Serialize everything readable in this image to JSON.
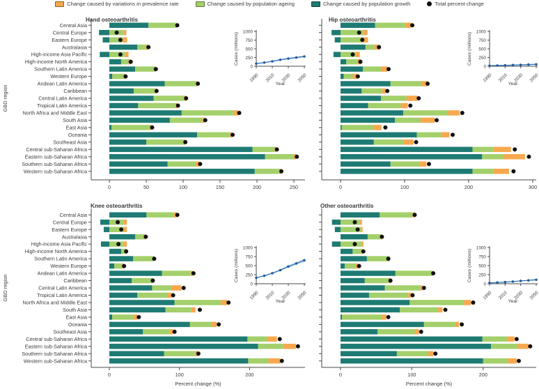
{
  "legend": {
    "items": [
      {
        "label": "Change caused by variations in prevalence rate",
        "color": "#f7a84e",
        "shape": "square"
      },
      {
        "label": "Change caused by population ageing",
        "color": "#a4d06b",
        "shape": "square"
      },
      {
        "label": "Change caused by population growth",
        "color": "#1e7b73",
        "shape": "square"
      },
      {
        "label": "Total percent change",
        "color": "#111111",
        "shape": "dot"
      }
    ]
  },
  "axes": {
    "y_axis_label": "GBD region",
    "x_axis_label": "Percent change (%)"
  },
  "colors": {
    "prevalence": "#f7a84e",
    "ageing": "#a4d06b",
    "growth": "#1e7b73",
    "total_dot": "#111111",
    "inset_line": "#2c6cb0",
    "inset_marker": "#1f5d9e",
    "inset_band": "#b8d3ea",
    "axis": "#4a4a4a",
    "text": "#3a3a3a"
  },
  "chart_data": {
    "type": "bar",
    "orientation": "horizontal-stacked",
    "categories": [
      "Central Asia",
      "Central Europe",
      "Eastern Europe",
      "Australasia",
      "High-income Asia Pacific",
      "High-income North America",
      "Southern Latin America",
      "Western Europe",
      "Andean Latin America",
      "Caribbean",
      "Central Latin America",
      "Tropical Latin America",
      "North Africa and Middle East",
      "South Asia",
      "East Asia",
      "Oceania",
      "Southeast Asia",
      "Central sub-Saharan Africa",
      "Eastern sub-Saharan Africa",
      "Southern sub-Saharan Africa",
      "Western sub-Saharan Africa"
    ],
    "panels": [
      {
        "id": "hand",
        "title": "Hand osteoarthritis",
        "x_ticks": [
          0,
          50,
          100,
          150,
          200,
          250
        ],
        "xlim": [
          -30,
          265
        ],
        "series": [
          {
            "name": "Change caused by population growth",
            "key": "growth",
            "values": [
              53,
              -14,
              -9,
              38,
              -13,
              16,
              35,
              4,
              75,
              33,
              60,
              39,
              98,
              82,
              3,
              119,
              50,
              194,
              211,
              79,
              197
            ]
          },
          {
            "name": "Change caused by population ageing",
            "key": "ageing",
            "values": [
              36,
              19,
              18,
              12,
              21,
              10,
              26,
              15,
              43,
              29,
              41,
              50,
              71,
              44,
              51,
              44,
              50,
              30,
              38,
              38,
              33
            ]
          },
          {
            "name": "Change caused by variations in prevalence rate",
            "key": "prevalence",
            "values": [
              2,
              4,
              6,
              3,
              5,
              3,
              2,
              3,
              2,
              2,
              3,
              3,
              6,
              3,
              3,
              3,
              3,
              2,
              4,
              5,
              3
            ]
          }
        ],
        "total_percent_change": [
          92,
          10,
          15,
          53,
          15,
          29,
          63,
          22,
          120,
          64,
          104,
          93,
          176,
          130,
          58,
          167,
          103,
          227,
          254,
          123,
          233
        ],
        "inset": {
          "ylabel": "Cases (millions)",
          "xlabel": "Year",
          "ylim": [
            0,
            1000
          ],
          "y_ticks": [
            0,
            250,
            500,
            750,
            1000
          ],
          "x_tick_labels": [
            "1990",
            "2010",
            "2030",
            "2050"
          ],
          "years": [
            1990,
            2000,
            2010,
            2020,
            2030,
            2040,
            2050
          ],
          "cases": [
            75,
            105,
            140,
            185,
            220,
            250,
            280
          ]
        }
      },
      {
        "id": "hip",
        "title": "Hip osteoarthritis",
        "x_ticks": [
          0,
          100,
          200,
          300
        ],
        "xlim": [
          -30,
          310
        ],
        "series": [
          {
            "name": "Change caused by population growth",
            "key": "growth",
            "values": [
              54,
              -14,
              -9,
              39,
              -11,
              9,
              35,
              5,
              78,
              33,
              63,
              43,
              98,
              85,
              2,
              119,
              52,
              206,
              221,
              78,
              206
            ]
          },
          {
            "name": "Change caused by population ageing",
            "key": "ageing",
            "values": [
              47,
              35,
              35,
              14,
              23,
              18,
              28,
              14,
              48,
              32,
              40,
              51,
              70,
              40,
              49,
              38,
              47,
              33,
              34,
              45,
              33
            ]
          },
          {
            "name": "Change caused by variations in prevalence rate",
            "key": "prevalence",
            "values": [
              9,
              7,
              8,
              8,
              7,
              5,
              10,
              7,
              10,
              6,
              17,
              11,
              18,
              22,
              13,
              13,
              15,
              27,
              33,
              11,
              24
            ]
          }
        ],
        "total_percent_change": [
          112,
          29,
          34,
          60,
          19,
          31,
          75,
          27,
          136,
          73,
          122,
          109,
          190,
          150,
          70,
          175,
          118,
          272,
          294,
          138,
          270
        ],
        "inset": {
          "ylabel": "Cases (millions)",
          "xlabel": "Year",
          "ylim": [
            0,
            1000
          ],
          "y_ticks": [
            0,
            250,
            500,
            750,
            1000
          ],
          "x_tick_labels": [
            "1990",
            "2010",
            "2030",
            "2050"
          ],
          "years": [
            1990,
            2000,
            2010,
            2020,
            2030,
            2040,
            2050
          ],
          "cases": [
            15,
            20,
            26,
            33,
            40,
            48,
            55
          ]
        }
      },
      {
        "id": "knee",
        "title": "Knee osteoarthritis",
        "x_ticks": [
          0,
          100,
          200
        ],
        "xlim": [
          -30,
          280
        ],
        "series": [
          {
            "name": "Change caused by population growth",
            "key": "growth",
            "values": [
              53,
              -13,
              -8,
              37,
              -12,
              17,
              34,
              7,
              75,
              32,
              61,
              40,
              93,
              80,
              4,
              115,
              48,
              197,
              212,
              78,
              198
            ]
          },
          {
            "name": "Change caused by population ageing",
            "key": "ageing",
            "values": [
              39,
              20,
              20,
              13,
              20,
              6,
              29,
              11,
              41,
              28,
              27,
              43,
              66,
              37,
              30,
              31,
              38,
              28,
              36,
              44,
              29
            ]
          },
          {
            "name": "Change caused by variations in prevalence rate",
            "key": "prevalence",
            "values": [
              4,
              5,
              5,
              2,
              5,
              2,
              1,
              3,
              3,
              2,
              15,
              6,
              9,
              6,
              6,
              7,
              5,
              14,
              18,
              5,
              17
            ]
          }
        ],
        "total_percent_change": [
          97,
          12,
          17,
          52,
          13,
          24,
          64,
          21,
          120,
          62,
          106,
          91,
          170,
          129,
          42,
          156,
          93,
          243,
          269,
          127,
          246
        ],
        "inset": {
          "ylabel": "Cases (millions)",
          "xlabel": "Year",
          "ylim": [
            0,
            1000
          ],
          "y_ticks": [
            0,
            250,
            500,
            750,
            1000
          ],
          "x_tick_labels": [
            "1990",
            "2010",
            "2030",
            "2050"
          ],
          "years": [
            1990,
            2000,
            2010,
            2020,
            2030,
            2040,
            2050
          ],
          "cases": [
            165,
            220,
            290,
            375,
            475,
            560,
            645
          ]
        }
      },
      {
        "id": "other",
        "title": "Other osteoarthritis",
        "x_ticks": [
          0,
          100,
          200
        ],
        "xlim": [
          -30,
          280
        ],
        "series": [
          {
            "name": "Change caused by population growth",
            "key": "growth",
            "values": [
              55,
              -12,
              -8,
              38,
              -12,
              17,
              37,
              6,
              77,
              34,
              62,
              40,
              97,
              83,
              2,
              117,
              52,
              199,
              211,
              79,
              200
            ]
          },
          {
            "name": "Change caused by population ageing",
            "key": "ageing",
            "values": [
              46,
              27,
              29,
              18,
              30,
              12,
              31,
              15,
              50,
              34,
              50,
              55,
              76,
              54,
              56,
              44,
              52,
              35,
              38,
              44,
              35
            ]
          },
          {
            "name": "Change caused by variations in prevalence rate",
            "key": "prevalence",
            "values": [
              3,
              3,
              2,
              2,
              2,
              2,
              1,
              4,
              2,
              2,
              3,
              4,
              10,
              6,
              6,
              5,
              6,
              10,
              15,
              7,
              12
            ]
          }
        ],
        "total_percent_change": [
          104,
          20,
          24,
          58,
          20,
          32,
          67,
          26,
          130,
          70,
          117,
          101,
          186,
          147,
          67,
          170,
          113,
          247,
          266,
          133,
          250
        ],
        "inset": {
          "ylabel": "Cases (millions)",
          "xlabel": "Year",
          "ylim": [
            0,
            1000
          ],
          "y_ticks": [
            0,
            250,
            500,
            750,
            1000
          ],
          "x_tick_labels": [
            "1990",
            "2010",
            "2030",
            "2050"
          ],
          "years": [
            1990,
            2000,
            2010,
            2020,
            2030,
            2040,
            2050
          ],
          "cases": [
            22,
            32,
            45,
            60,
            78,
            93,
            110
          ]
        }
      }
    ]
  }
}
